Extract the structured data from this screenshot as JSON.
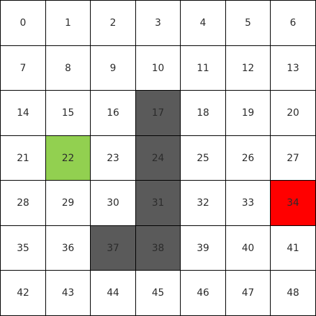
{
  "grid": {
    "rows": 7,
    "cols": 7,
    "colors": {
      "empty": "#ffffff",
      "wall": "#5a5a5a",
      "start": "#92d050",
      "goal": "#ff0000",
      "border": "#000000",
      "text": "#2b2b2b"
    },
    "start": 22,
    "goal": 34,
    "walls": [
      17,
      24,
      31,
      37,
      38
    ],
    "cells": [
      {
        "label": "0"
      },
      {
        "label": "1"
      },
      {
        "label": "2"
      },
      {
        "label": "3"
      },
      {
        "label": "4"
      },
      {
        "label": "5"
      },
      {
        "label": "6"
      },
      {
        "label": "7"
      },
      {
        "label": "8"
      },
      {
        "label": "9"
      },
      {
        "label": "10"
      },
      {
        "label": "11"
      },
      {
        "label": "12"
      },
      {
        "label": "13"
      },
      {
        "label": "14"
      },
      {
        "label": "15"
      },
      {
        "label": "16"
      },
      {
        "label": "17"
      },
      {
        "label": "18"
      },
      {
        "label": "19"
      },
      {
        "label": "20"
      },
      {
        "label": "21"
      },
      {
        "label": "22"
      },
      {
        "label": "23"
      },
      {
        "label": "24"
      },
      {
        "label": "25"
      },
      {
        "label": "26"
      },
      {
        "label": "27"
      },
      {
        "label": "28"
      },
      {
        "label": "29"
      },
      {
        "label": "30"
      },
      {
        "label": "31"
      },
      {
        "label": "32"
      },
      {
        "label": "33"
      },
      {
        "label": "34"
      },
      {
        "label": "35"
      },
      {
        "label": "36"
      },
      {
        "label": "37"
      },
      {
        "label": "38"
      },
      {
        "label": "39"
      },
      {
        "label": "40"
      },
      {
        "label": "41"
      },
      {
        "label": "42"
      },
      {
        "label": "43"
      },
      {
        "label": "44"
      },
      {
        "label": "45"
      },
      {
        "label": "46"
      },
      {
        "label": "47"
      },
      {
        "label": "48"
      }
    ]
  }
}
